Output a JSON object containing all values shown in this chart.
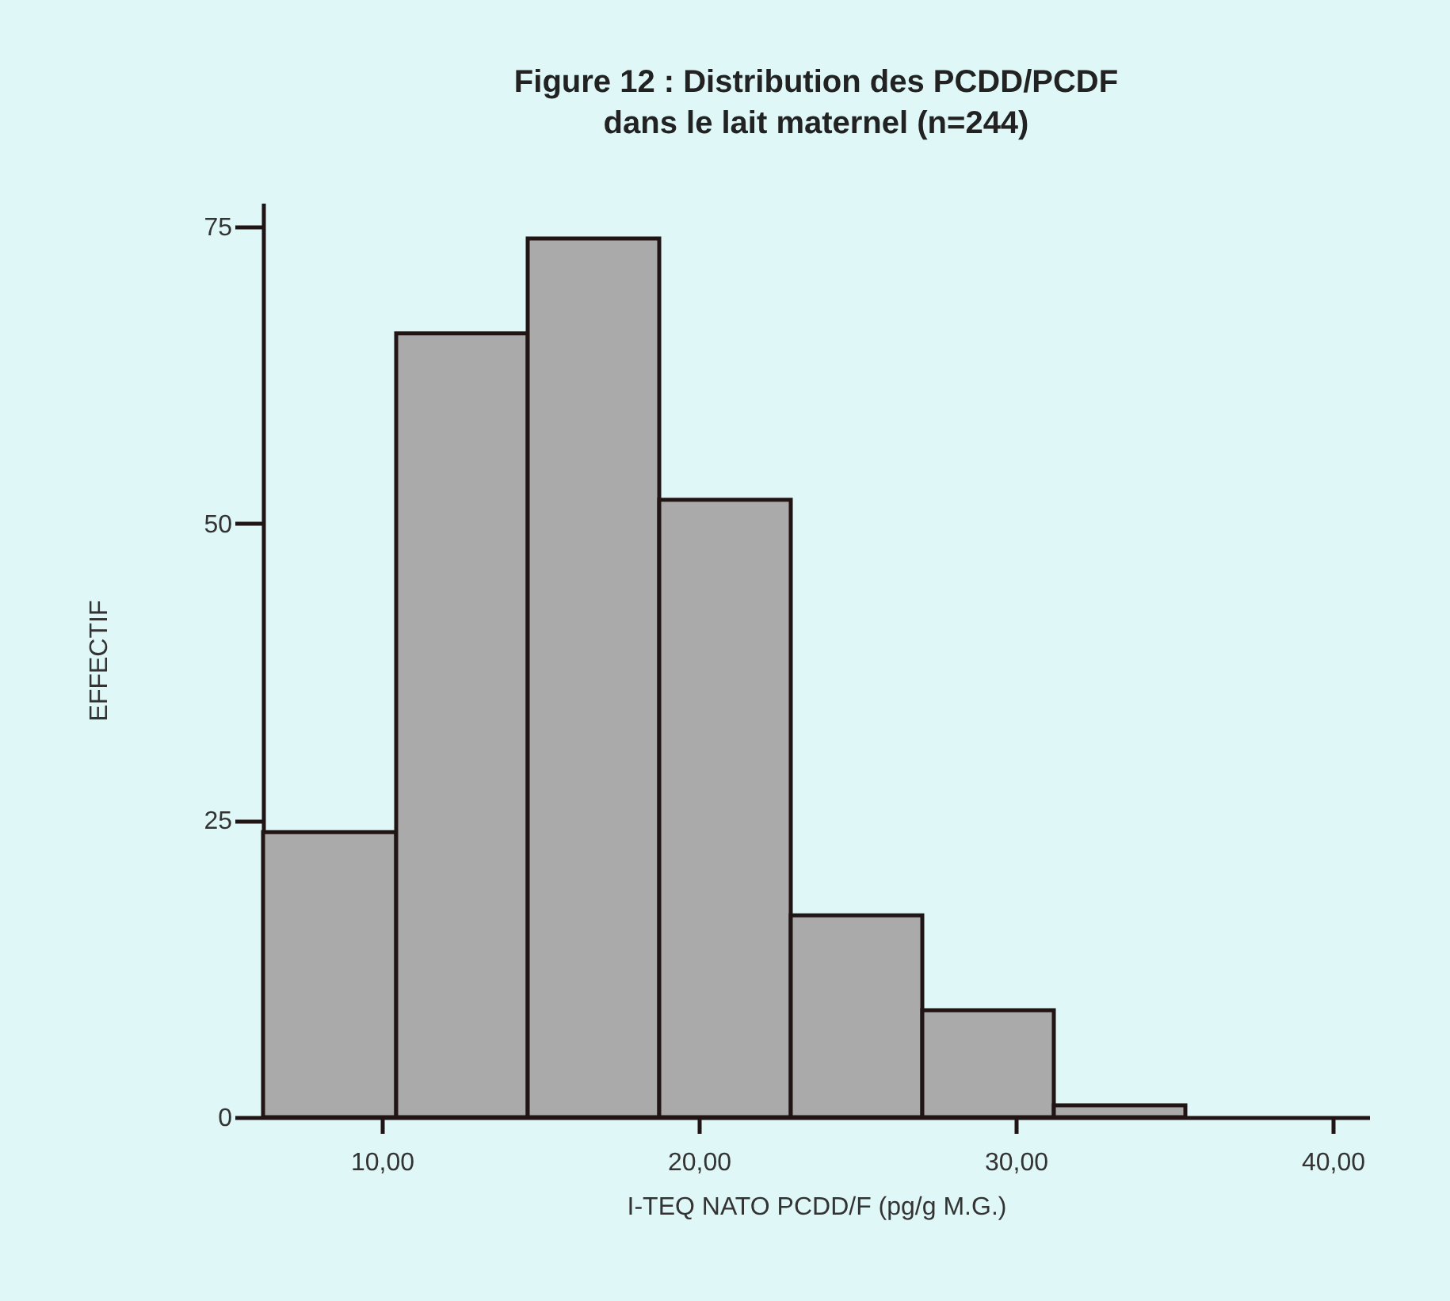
{
  "chart_data": {
    "type": "histogram",
    "title": "Figure 12 : Distribution des PCDD/PCDF\ndans le lait maternel (n=244)",
    "xlabel": "I-TEQ NATO PCDD/F (pg/g M.G.)",
    "ylabel": "EFFECTIF",
    "bins": [
      6.25,
      10.45,
      14.6,
      18.75,
      22.9,
      27.05,
      31.2,
      35.35
    ],
    "values": [
      24,
      66,
      74,
      52,
      17,
      9,
      1
    ],
    "color": "#aaaaaa",
    "xlim": [
      6.25,
      41.15
    ],
    "xticks": [
      {
        "value": 10,
        "label": "10,00"
      },
      {
        "value": 20,
        "label": "20,00"
      },
      {
        "value": 30,
        "label": "30,00"
      },
      {
        "value": 40,
        "label": "40,00"
      }
    ],
    "ylim": [
      0,
      77
    ],
    "yticks": [
      0,
      25,
      50,
      75
    ]
  }
}
